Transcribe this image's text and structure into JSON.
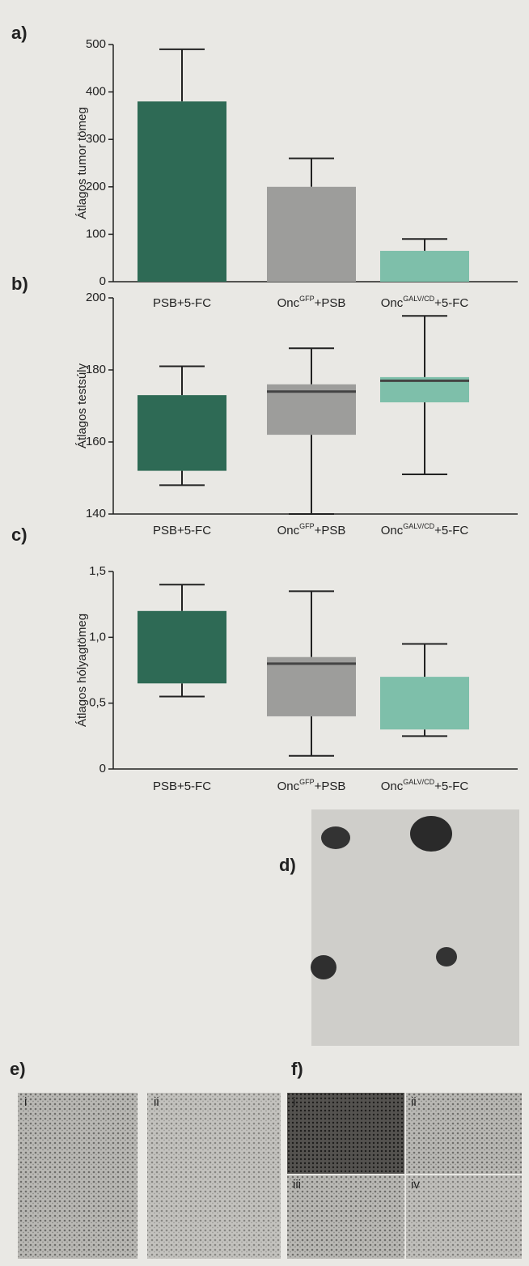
{
  "chart_data": [
    {
      "type": "bar",
      "label": "a)",
      "ylabel": "Átlagos tumor tömeg",
      "categories": [
        [
          "PSB+5-FC"
        ],
        [
          "Onc",
          "GFP",
          "+PSB"
        ],
        [
          "Onc",
          "GALV/CD",
          "+5-FC"
        ]
      ],
      "values": [
        380,
        200,
        65
      ],
      "errors": [
        110,
        60,
        25
      ],
      "colors": [
        "#2e6a55",
        "#9d9d9b",
        "#7ebfaa"
      ],
      "ylim": [
        0,
        500
      ],
      "yticks": [
        0,
        100,
        200,
        300,
        400,
        500
      ]
    },
    {
      "type": "box",
      "label": "b)",
      "ylabel": "Átlagos testsúly",
      "categories": [
        [
          "PSB+5-FC"
        ],
        [
          "Onc",
          "GFP",
          "+PSB"
        ],
        [
          "Onc",
          "GALV/CD",
          "+5-FC"
        ]
      ],
      "low": [
        148,
        140,
        151
      ],
      "q1": [
        152,
        162,
        171
      ],
      "median": [
        null,
        174,
        177
      ],
      "q3": [
        173,
        176,
        178
      ],
      "high": [
        181,
        186,
        195
      ],
      "colors": [
        "#2e6a55",
        "#9d9d9b",
        "#7ebfaa"
      ],
      "ylim": [
        140,
        200
      ],
      "yticks": [
        140,
        160,
        180,
        200
      ]
    },
    {
      "type": "box",
      "label": "c)",
      "ylabel": "Átlagos hólyagtömeg",
      "categories": [
        [
          "PSB+5-FC"
        ],
        [
          "Onc",
          "GFP",
          "+PSB"
        ],
        [
          "Onc",
          "GALV/CD",
          "+5-FC"
        ]
      ],
      "low": [
        0.55,
        0.1,
        0.25
      ],
      "q1": [
        0.65,
        0.4,
        0.3
      ],
      "median": [
        null,
        0.8,
        null
      ],
      "q3": [
        1.2,
        0.85,
        0.7
      ],
      "high": [
        1.4,
        1.35,
        0.95
      ],
      "colors": [
        "#2e6a55",
        "#9d9d9b",
        "#7ebfaa"
      ],
      "ylim": [
        0,
        1.5
      ],
      "yticks": [
        0,
        {
          "value": 0.5,
          "label": "0,5"
        },
        {
          "value": 1.0,
          "label": "1,0"
        },
        {
          "value": 1.5,
          "label": "1,5"
        }
      ]
    }
  ],
  "images": [
    {
      "label": "d)"
    },
    {
      "label": "e)",
      "parts": [
        "i",
        "ii"
      ]
    },
    {
      "label": "f)",
      "parts": [
        "i",
        "ii",
        "iii",
        "iv"
      ]
    }
  ]
}
